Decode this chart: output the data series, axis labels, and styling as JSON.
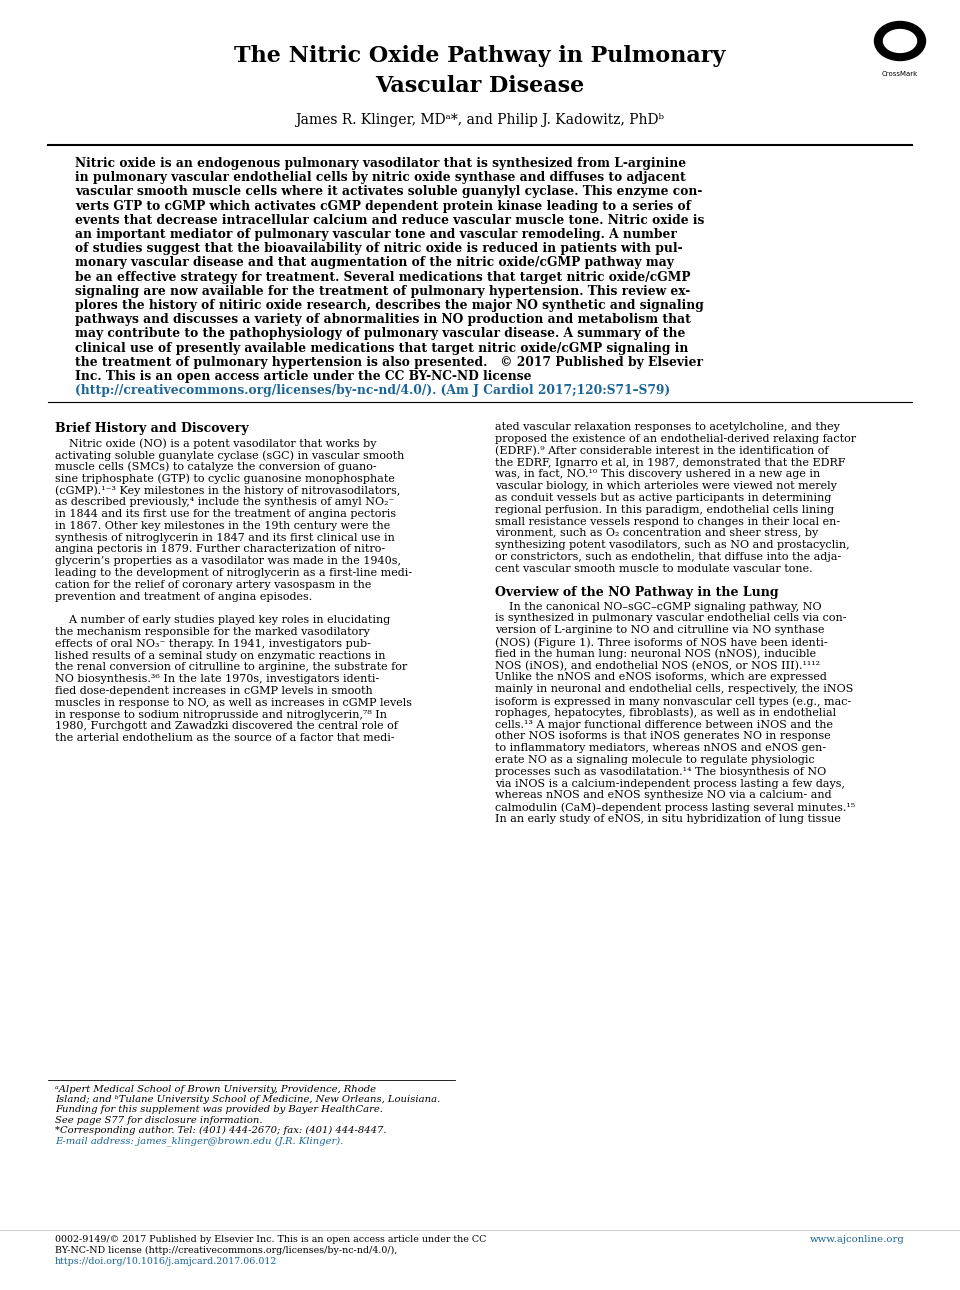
{
  "title_line1": "The Nitric Oxide Pathway in Pulmonary",
  "title_line2": "Vascular Disease",
  "author_line": "James R. Klinger, MDᵃ*, and Philip J. Kadowitz, PhDᵇ",
  "section1_title": "Brief History and Discovery",
  "section2_title": "Overview of the NO Pathway in the Lung",
  "abstract_lines": [
    "Nitric oxide is an endogenous pulmonary vasodilator that is synthesized from L-arginine",
    "in pulmonary vascular endothelial cells by nitric oxide synthase and diffuses to adjacent",
    "vascular smooth muscle cells where it activates soluble guanylyl cyclase. This enzyme con-",
    "verts GTP to cGMP which activates cGMP dependent protein kinase leading to a series of",
    "events that decrease intracellular calcium and reduce vascular muscle tone. Nitric oxide is",
    "an important mediator of pulmonary vascular tone and vascular remodeling. A number",
    "of studies suggest that the bioavailability of nitric oxide is reduced in patients with pul-",
    "monary vascular disease and that augmentation of the nitric oxide/cGMP pathway may",
    "be an effective strategy for treatment. Several medications that target nitric oxide/cGMP",
    "signaling are now available for the treatment of pulmonary hypertension. This review ex-",
    "plores the history of nitiric oxide research, describes the major NO synthetic and signaling",
    "pathways and discusses a variety of abnormalities in NO production and metabolism that",
    "may contribute to the pathophysiology of pulmonary vascular disease. A summary of the",
    "clinical use of presently available medications that target nitric oxide/cGMP signaling in",
    "the treatment of pulmonary hypertension is also presented.   © 2017 Published by Elsevier",
    "Inc. This is an open access article under the CC BY-NC-ND license"
  ],
  "abstract_url_line": "(http://creativecommons.org/licenses/by-nc-nd/4.0/). (Am J Cardiol 2017;120:S71–S79)",
  "col1_lines": [
    "    Nitric oxide (NO) is a potent vasodilator that works by",
    "activating soluble guanylate cyclase (sGC) in vascular smooth",
    "muscle cells (SMCs) to catalyze the conversion of guano-",
    "sine triphosphate (GTP) to cyclic guanosine monophosphate",
    "(cGMP).¹⁻³ Key milestones in the history of nitrovasodilators,",
    "as described previously,⁴ include the synthesis of amyl NO₂⁻",
    "in 1844 and its first use for the treatment of angina pectoris",
    "in 1867. Other key milestones in the 19th century were the",
    "synthesis of nitroglycerin in 1847 and its first clinical use in",
    "angina pectoris in 1879. Further characterization of nitro-",
    "glycerin’s properties as a vasodilator was made in the 1940s,",
    "leading to the development of nitroglycerin as a first-line medi-",
    "cation for the relief of coronary artery vasospasm in the",
    "prevention and treatment of angina episodes.",
    "",
    "    A number of early studies played key roles in elucidating",
    "the mechanism responsible for the marked vasodilatory",
    "effects of oral NO₃⁻ therapy. In 1941, investigators pub-",
    "lished results of a seminal study on enzymatic reactions in",
    "the renal conversion of citrulline to arginine, the substrate for",
    "NO biosynthesis.³⁶ In the late 1970s, investigators identi-",
    "fied dose-dependent increases in cGMP levels in smooth",
    "muscles in response to NO, as well as increases in cGMP levels",
    "in response to sodium nitroprusside and nitroglycerin,⁷⁸ In",
    "1980, Furchgott and Zawadzki discovered the central role of",
    "the arterial endothelium as the source of a factor that medi-"
  ],
  "col2_lines_sec1": [
    "ated vascular relaxation responses to acetylcholine, and they",
    "proposed the existence of an endothelial-derived relaxing factor",
    "(EDRF).⁹ After considerable interest in the identification of",
    "the EDRF, Ignarro et al, in 1987, demonstrated that the EDRF",
    "was, in fact, NO.¹⁰ This discovery ushered in a new age in",
    "vascular biology, in which arterioles were viewed not merely",
    "as conduit vessels but as active participants in determining",
    "regional perfusion. In this paradigm, endothelial cells lining",
    "small resistance vessels respond to changes in their local en-",
    "vironment, such as O₂ concentration and sheer stress, by",
    "synthesizing potent vasodilators, such as NO and prostacyclin,",
    "or constrictors, such as endothelin, that diffuse into the adja-",
    "cent vascular smooth muscle to modulate vascular tone."
  ],
  "col2_lines_sec2": [
    "    In the canonical NO–sGC–cGMP signaling pathway, NO",
    "is synthesized in pulmonary vascular endothelial cells via con-",
    "version of L-arginine to NO and citrulline via NO synthase",
    "(NOS) (Figure 1). Three isoforms of NOS have been identi-",
    "fied in the human lung: neuronal NOS (nNOS), inducible",
    "NOS (iNOS), and endothelial NOS (eNOS, or NOS III).¹¹¹²",
    "Unlike the nNOS and eNOS isoforms, which are expressed",
    "mainly in neuronal and endothelial cells, respectively, the iNOS",
    "isoform is expressed in many nonvascular cell types (e.g., mac-",
    "rophages, hepatocytes, fibroblasts), as well as in endothelial",
    "cells.¹³ A major functional difference between iNOS and the",
    "other NOS isoforms is that iNOS generates NO in response",
    "to inflammatory mediators, whereas nNOS and eNOS gen-",
    "erate NO as a signaling molecule to regulate physiologic",
    "processes such as vasodilatation.¹⁴ The biosynthesis of NO",
    "via iNOS is a calcium-independent process lasting a few days,",
    "whereas nNOS and eNOS synthesize NO via a calcium- and",
    "calmodulin (CaM)–dependent process lasting several minutes.¹⁵",
    "In an early study of eNOS, in situ hybridization of lung tissue"
  ],
  "footnote_lines": [
    "ᵃAlpert Medical School of Brown University, Providence, Rhode",
    "Island; and ᵇTulane University School of Medicine, New Orleans, Louisiana.",
    "Funding for this supplement was provided by Bayer HealthCare.",
    "See page S77 for disclosure information.",
    "*Corresponding author. Tel: (401) 444-2670; fax: (401) 444-8447.",
    "E-mail address: james_klinger@brown.edu (J.R. Klinger)."
  ],
  "footnote_link_idx": 5,
  "footer_text1": "0002-9149/© 2017 Published by Elsevier Inc. This is an open access article under the CC",
  "footer_text2": "BY-NC-ND license (http://creativecommons.org/licenses/by-nc-nd/4.0/),",
  "footer_doi": "https://doi.org/10.1016/j.amjcard.2017.06.012",
  "footer_right": "www.ajconline.org",
  "bg_color": "#ffffff",
  "text_color": "#000000",
  "blue_color": "#1a6496",
  "title_fontsize": 16,
  "author_fontsize": 10,
  "abstract_fontsize": 8.8,
  "body_fontsize": 8.0,
  "section_fontsize": 9.0,
  "footnote_fontsize": 7.2,
  "footer_fontsize": 6.8
}
